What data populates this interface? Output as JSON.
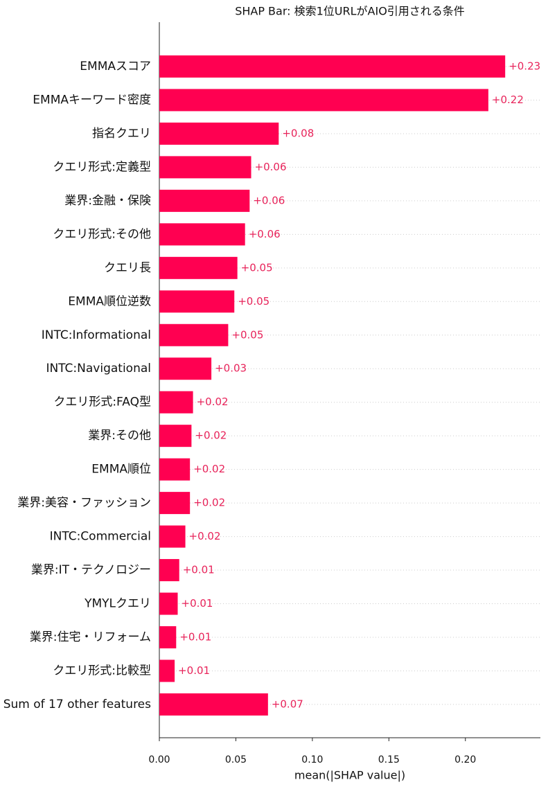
{
  "chart_data": {
    "type": "barh",
    "title": "SHAP Bar: 検索1位URLがAIO引用される条件",
    "xlabel": "mean(|SHAP value|)",
    "categories": [
      "EMMAスコア",
      "EMMAキーワード密度",
      "指名クエリ",
      "クエリ形式:定義型",
      "業界:金融・保険",
      "クエリ形式:その他",
      "クエリ長",
      "EMMA順位逆数",
      "INTC:Informational",
      "INTC:Navigational",
      "クエリ形式:FAQ型",
      "業界:その他",
      "EMMA順位",
      "業界:美容・ファッション",
      "INTC:Commercial",
      "業界:IT・テクノロジー",
      "YMYLクエリ",
      "業界:住宅・リフォーム",
      "クエリ形式:比較型",
      "Sum of 17 other features"
    ],
    "values": [
      0.226,
      0.215,
      0.078,
      0.06,
      0.059,
      0.056,
      0.051,
      0.049,
      0.045,
      0.034,
      0.022,
      0.021,
      0.02,
      0.02,
      0.017,
      0.013,
      0.012,
      0.011,
      0.01,
      0.071
    ],
    "value_labels": [
      "+0.23",
      "+0.22",
      "+0.08",
      "+0.06",
      "+0.06",
      "+0.06",
      "+0.05",
      "+0.05",
      "+0.05",
      "+0.03",
      "+0.02",
      "+0.02",
      "+0.02",
      "+0.02",
      "+0.02",
      "+0.01",
      "+0.01",
      "+0.01",
      "+0.01",
      "+0.07"
    ],
    "color": "#ff0051",
    "label_color": "#e8235a",
    "xlim": [
      0,
      0.249
    ],
    "xticks": [
      {
        "value": 0,
        "label": "0.00"
      },
      {
        "value": 0.05,
        "label": "0.05"
      },
      {
        "value": 0.1,
        "label": "0.10"
      },
      {
        "value": 0.15,
        "label": "0.15"
      },
      {
        "value": 0.2,
        "label": "0.20"
      }
    ]
  }
}
